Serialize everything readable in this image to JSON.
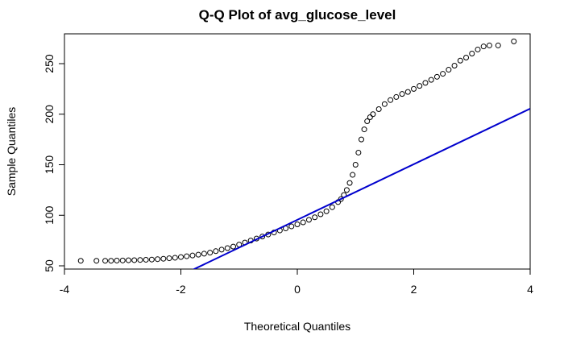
{
  "chart_data": {
    "type": "scatter",
    "title": "Q-Q Plot of avg_glucose_level",
    "x_label": "Theoretical Quantiles",
    "y_label": "Sample Quantiles",
    "x": [
      -3.72,
      -3.45,
      -3.3,
      -3.2,
      -3.1,
      -3.0,
      -2.9,
      -2.8,
      -2.7,
      -2.6,
      -2.5,
      -2.4,
      -2.3,
      -2.2,
      -2.1,
      -2.0,
      -1.9,
      -1.8,
      -1.7,
      -1.6,
      -1.5,
      -1.4,
      -1.3,
      -1.2,
      -1.1,
      -1.0,
      -0.9,
      -0.8,
      -0.7,
      -0.6,
      -0.5,
      -0.4,
      -0.3,
      -0.2,
      -0.1,
      0.0,
      0.1,
      0.2,
      0.3,
      0.4,
      0.5,
      0.6,
      0.7,
      0.75,
      0.8,
      0.85,
      0.9,
      0.95,
      1.0,
      1.05,
      1.1,
      1.15,
      1.2,
      1.25,
      1.3,
      1.4,
      1.5,
      1.6,
      1.7,
      1.8,
      1.9,
      2.0,
      2.1,
      2.2,
      2.3,
      2.4,
      2.5,
      2.6,
      2.7,
      2.8,
      2.9,
      3.0,
      3.1,
      3.2,
      3.3,
      3.45,
      3.72
    ],
    "values": [
      55,
      55,
      55,
      55,
      55.2,
      55.3,
      55.5,
      55.6,
      55.8,
      56,
      56.2,
      56.6,
      57,
      57.5,
      58,
      58.7,
      59.5,
      60.2,
      61,
      62,
      63,
      64.5,
      66,
      67.5,
      69,
      71,
      73,
      75,
      77,
      79,
      81,
      83,
      85,
      87,
      89,
      91,
      93,
      95.5,
      98,
      101,
      104,
      108,
      113,
      116,
      120,
      125,
      132,
      140,
      150,
      162,
      175,
      185,
      193,
      197,
      200,
      205,
      210,
      214,
      217,
      220,
      222,
      225,
      228,
      231,
      234,
      237,
      240,
      244,
      248,
      253,
      256,
      260,
      264,
      267,
      268,
      268,
      272
    ],
    "color": "#000000",
    "qq_line": {
      "intercept": 95.5,
      "slope": 27.5,
      "color": "#0000cd"
    },
    "xlim": [
      -4,
      4
    ],
    "ylim": [
      46.8,
      279.5
    ],
    "xticks": [
      -4,
      -2,
      0,
      2,
      4
    ],
    "yticks": [
      50,
      100,
      150,
      200,
      250
    ]
  }
}
